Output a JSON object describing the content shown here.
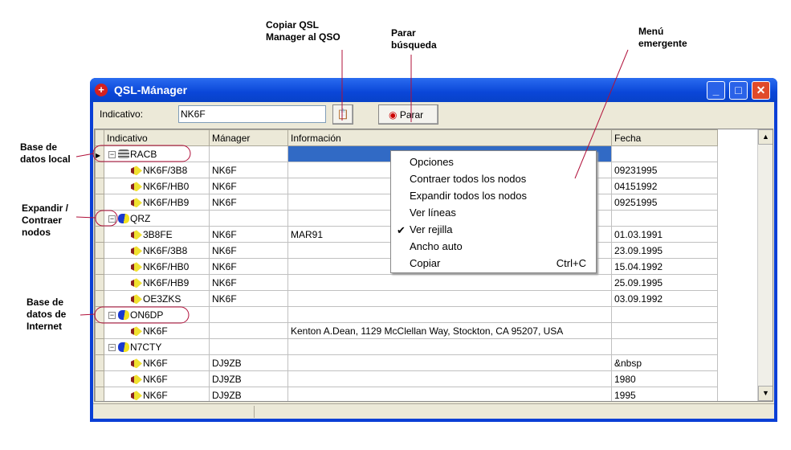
{
  "annotations": {
    "copy": "Copiar QSL\nManager al QSO",
    "stop": "Parar\nbúsqueda",
    "menu": "Menú\nemergente",
    "local": "Base de\ndatos local",
    "expand": "Expandir /\nContraer\nnodos",
    "internet": "Base de\ndatos de\nInternet"
  },
  "window": {
    "title": "QSL-Mánager"
  },
  "toolbar": {
    "label": "Indicativo:",
    "value": "NK6F",
    "stop": "Parar"
  },
  "grid": {
    "headers": [
      "Indicativo",
      "Mánager",
      "Información",
      "Fecha"
    ],
    "rows": [
      {
        "level": 0,
        "icon": "database",
        "call": "RACB",
        "manager": "",
        "info": "",
        "date": "",
        "selected": true
      },
      {
        "level": 1,
        "call": "NK6F/3B8",
        "manager": "NK6F",
        "info": "",
        "date": "09231995"
      },
      {
        "level": 1,
        "call": "NK6F/HB0",
        "manager": "NK6F",
        "info": "",
        "date": "04151992"
      },
      {
        "level": 1,
        "call": "NK6F/HB9",
        "manager": "NK6F",
        "info": "",
        "date": "09251995"
      },
      {
        "level": 0,
        "icon": "internet",
        "call": "QRZ",
        "manager": "",
        "info": "",
        "date": ""
      },
      {
        "level": 1,
        "call": "3B8FE",
        "manager": "NK6F",
        "info": "MAR91",
        "date": "01.03.1991"
      },
      {
        "level": 1,
        "call": "NK6F/3B8",
        "manager": "NK6F",
        "info": "",
        "date": "23.09.1995"
      },
      {
        "level": 1,
        "call": "NK6F/HB0",
        "manager": "NK6F",
        "info": "",
        "date": "15.04.1992"
      },
      {
        "level": 1,
        "call": "NK6F/HB9",
        "manager": "NK6F",
        "info": "",
        "date": "25.09.1995"
      },
      {
        "level": 1,
        "call": "OE3ZKS",
        "manager": "NK6F",
        "info": "",
        "date": "03.09.1992"
      },
      {
        "level": 0,
        "icon": "internet",
        "call": "ON6DP",
        "manager": "",
        "info": "",
        "date": ""
      },
      {
        "level": 1,
        "call": "NK6F",
        "manager": "",
        "info": "Kenton A.Dean, 1129 McClellan Way, Stockton, CA 95207, USA",
        "date": ""
      },
      {
        "level": 0,
        "icon": "internet",
        "call": "N7CTY",
        "manager": "",
        "info": "",
        "date": ""
      },
      {
        "level": 1,
        "call": "NK6F",
        "manager": "DJ9ZB",
        "info": "",
        "date": "&nbsp"
      },
      {
        "level": 1,
        "call": "NK6F",
        "manager": "DJ9ZB",
        "info": "",
        "date": "1980"
      },
      {
        "level": 1,
        "call": "NK6F",
        "manager": "DJ9ZB",
        "info": "",
        "date": "1995"
      }
    ]
  },
  "context_menu": {
    "items": [
      {
        "label": "Opciones",
        "checked": false,
        "shortcut": ""
      },
      {
        "label": "Contraer todos los nodos",
        "checked": false,
        "shortcut": ""
      },
      {
        "label": "Expandir todos los nodos",
        "checked": false,
        "shortcut": ""
      },
      {
        "label": "Ver líneas",
        "checked": false,
        "shortcut": ""
      },
      {
        "label": "Ver rejilla",
        "checked": true,
        "shortcut": ""
      },
      {
        "label": "Ancho auto",
        "checked": false,
        "shortcut": ""
      },
      {
        "label": "Copiar",
        "checked": false,
        "shortcut": "Ctrl+C"
      }
    ]
  },
  "colors": {
    "callout": "#b0103a",
    "titlebar": "#0a46d8",
    "selection": "#316ac5"
  }
}
